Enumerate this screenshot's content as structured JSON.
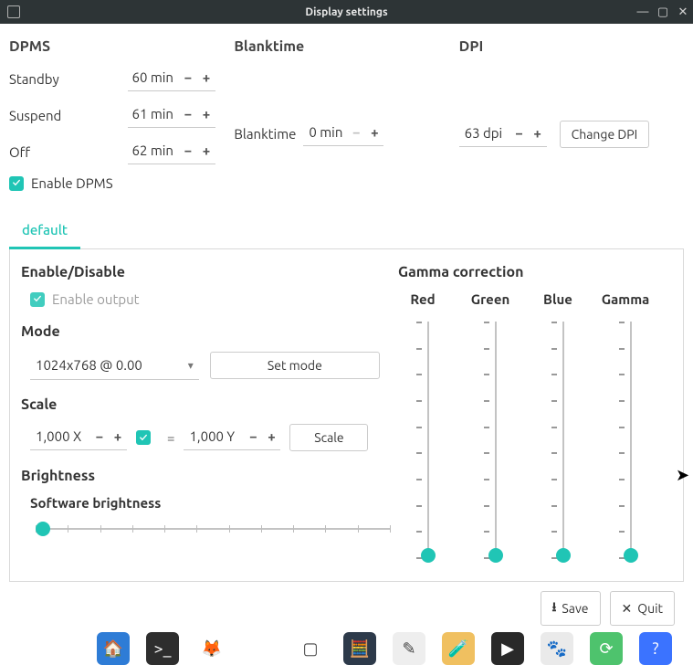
{
  "window": {
    "title": "Display settings"
  },
  "dpms": {
    "heading": "DPMS",
    "standby_label": "Standby",
    "suspend_label": "Suspend",
    "off_label": "Off",
    "standby_value": "60 min",
    "suspend_value": "61 min",
    "off_value": "62 min",
    "enable_label": "Enable DPMS",
    "enable_checked": true
  },
  "blanktime": {
    "heading": "Blanktime",
    "label": "Blanktime",
    "value": "0 min"
  },
  "dpi": {
    "heading": "DPI",
    "value": "63 dpi",
    "change_button": "Change DPI"
  },
  "tabs": {
    "items": [
      {
        "label": "default"
      }
    ]
  },
  "output": {
    "enable_heading": "Enable/Disable",
    "enable_output_label": "Enable output",
    "enable_output_checked": true,
    "mode_heading": "Mode",
    "mode_value": "1024x768 @ 0.00",
    "set_mode_button": "Set mode",
    "scale_heading": "Scale",
    "scale_x_value": "1,000 X",
    "scale_y_value": "1,000 Y",
    "scale_link_checked": true,
    "scale_equals": "=",
    "scale_button": "Scale",
    "brightness_heading": "Brightness",
    "software_brightness_label": "Software brightness",
    "software_brightness_value": 0.02,
    "brightness_ticks": 12
  },
  "gamma": {
    "heading": "Gamma correction",
    "columns": [
      {
        "label": "Red",
        "frac": 0.0
      },
      {
        "label": "Green",
        "frac": 0.0
      },
      {
        "label": "Blue",
        "frac": 0.0
      },
      {
        "label": "Gamma",
        "frac": 0.0
      }
    ],
    "tick_count": 10
  },
  "buttons": {
    "save": "Save",
    "quit": "Quit"
  },
  "dock": {
    "apps": [
      {
        "name": "file-manager",
        "bg": "#2e7cd6",
        "glyph": "🏠"
      },
      {
        "name": "terminal",
        "bg": "#2e2e2e",
        "glyph": ">_"
      },
      {
        "name": "firefox",
        "bg": "#ffffff00",
        "glyph": "🦊"
      },
      {
        "name": "thunderbird",
        "bg": "#ffffff00",
        "glyph": "🕊"
      },
      {
        "name": "libreoffice",
        "bg": "#ffffff",
        "glyph": "▢"
      },
      {
        "name": "calculator",
        "bg": "#2d3a4a",
        "glyph": "🧮"
      },
      {
        "name": "notes",
        "bg": "#eee",
        "glyph": "✎"
      },
      {
        "name": "drawing",
        "bg": "#f0c060",
        "glyph": "🧪"
      },
      {
        "name": "media",
        "bg": "#292929",
        "glyph": "▶"
      },
      {
        "name": "gimp",
        "bg": "#eaeaea",
        "glyph": "🐾"
      },
      {
        "name": "reload",
        "bg": "#4ec36d",
        "glyph": "⟳"
      },
      {
        "name": "help",
        "bg": "#3b73ff",
        "glyph": "?"
      }
    ]
  },
  "colors": {
    "accent": "#20c5b5",
    "titlebar_bg": "#2d3436",
    "text": "#333333",
    "border": "#d9d9d9"
  }
}
